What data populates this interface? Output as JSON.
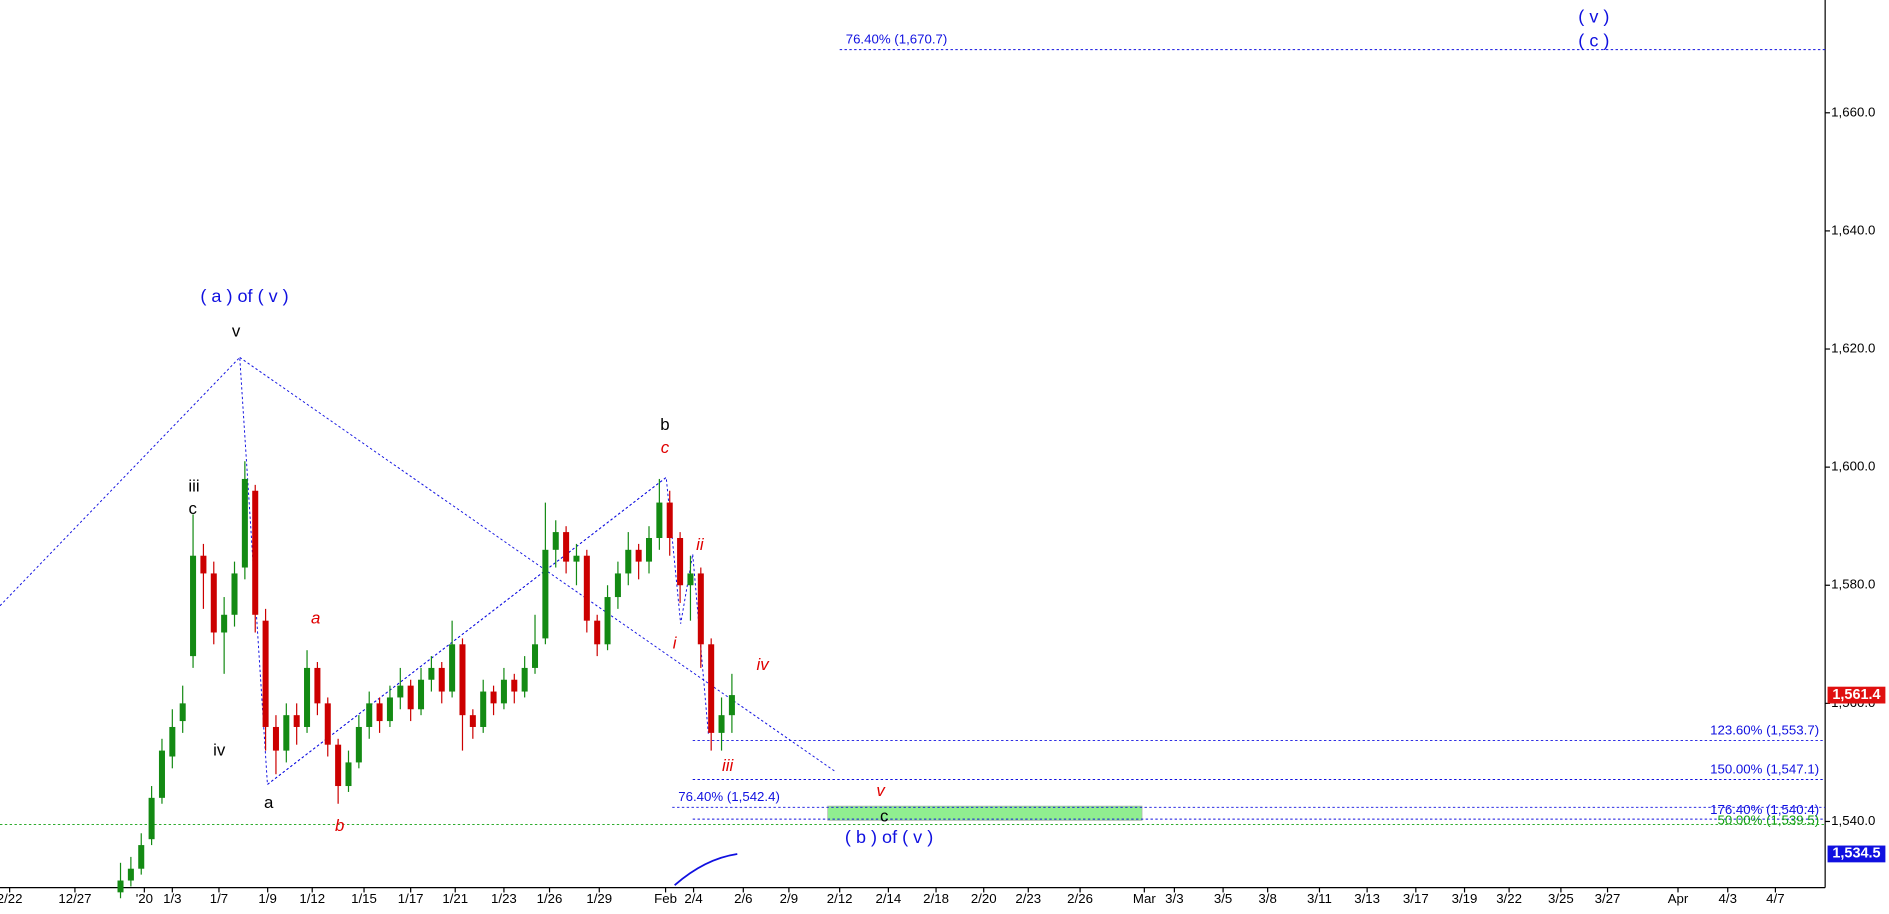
{
  "chart_data": {
    "type": "candlestick",
    "x": [
      0,
      1,
      2,
      3,
      4,
      5,
      6,
      7,
      8,
      9,
      10,
      11,
      12,
      13,
      14,
      15,
      16,
      17,
      18,
      19,
      20,
      21,
      22,
      23,
      24,
      25,
      26,
      27,
      28,
      29,
      30,
      31,
      32,
      33,
      34,
      35,
      36,
      37,
      38,
      39,
      40,
      41,
      42,
      43,
      44,
      45,
      46,
      47,
      48,
      49,
      50,
      51,
      52,
      53,
      54,
      55,
      56,
      57,
      58,
      59
    ],
    "open": [
      1528,
      1530,
      1532,
      1537,
      1544,
      1551,
      1557,
      1568,
      1585,
      1582,
      1572,
      1575,
      1583,
      1596,
      1574,
      1556,
      1552,
      1558,
      1556,
      1566,
      1560,
      1553,
      1546,
      1550,
      1556,
      1560,
      1557,
      1561,
      1563,
      1559,
      1564,
      1566,
      1562,
      1570,
      1558,
      1556,
      1562,
      1560,
      1564,
      1562,
      1566,
      1571,
      1586,
      1589,
      1584,
      1585,
      1574,
      1570,
      1578,
      1582,
      1586,
      1584,
      1588,
      1594,
      1588,
      1580,
      1582,
      1570,
      1555,
      1558
    ],
    "high": [
      1533,
      1534,
      1538,
      1546,
      1554,
      1559,
      1563,
      1592,
      1587,
      1584,
      1578,
      1584,
      1601,
      1597,
      1576,
      1558,
      1560,
      1560,
      1569,
      1567,
      1561,
      1554,
      1552,
      1558,
      1562,
      1561,
      1563,
      1566,
      1564,
      1566,
      1568,
      1567,
      1574,
      1571,
      1559,
      1564,
      1563,
      1566,
      1565,
      1568,
      1575,
      1594,
      1591,
      1590,
      1587,
      1586,
      1575,
      1580,
      1584,
      1589,
      1587,
      1590,
      1598,
      1596,
      1589,
      1585,
      1583,
      1571,
      1561,
      1565
    ],
    "low": [
      1527,
      1529,
      1531,
      1536,
      1543,
      1549,
      1555,
      1566,
      1576,
      1570,
      1565,
      1573,
      1581,
      1572,
      1552,
      1548,
      1550,
      1553,
      1555,
      1558,
      1551,
      1543,
      1545,
      1549,
      1554,
      1555,
      1556,
      1559,
      1557,
      1558,
      1562,
      1560,
      1561,
      1552,
      1554,
      1555,
      1558,
      1559,
      1560,
      1561,
      1565,
      1570,
      1583,
      1582,
      1580,
      1572,
      1568,
      1569,
      1576,
      1580,
      1581,
      1582,
      1586,
      1585,
      1577,
      1574,
      1566,
      1552,
      1552,
      1555
    ],
    "close": [
      1530,
      1532,
      1536,
      1544,
      1552,
      1556,
      1560,
      1585,
      1582,
      1572,
      1575,
      1582,
      1598,
      1575,
      1556,
      1552,
      1558,
      1556,
      1566,
      1560,
      1553,
      1546,
      1550,
      1556,
      1560,
      1557,
      1561,
      1563,
      1559,
      1564,
      1566,
      1562,
      1570,
      1558,
      1556,
      1562,
      1560,
      1564,
      1562,
      1566,
      1570,
      1586,
      1589,
      1584,
      1585,
      1574,
      1570,
      1578,
      1582,
      1586,
      1584,
      1588,
      1594,
      1588,
      1580,
      1582,
      1570,
      1555,
      1558,
      1561.4
    ],
    "up_color": "#138a13",
    "down_color": "#cc0000",
    "xlim": [
      -11.63,
      164.5
    ],
    "xticks": [
      {
        "value": -10.7,
        "label": "2/22"
      },
      {
        "value": -4.4,
        "label": "12/27"
      },
      {
        "value": 2.3,
        "label": "'20"
      },
      {
        "value": 5.0,
        "label": "1/3"
      },
      {
        "value": 9.5,
        "label": "1/7"
      },
      {
        "value": 14.2,
        "label": "1/9"
      },
      {
        "value": 18.5,
        "label": "1/12"
      },
      {
        "value": 23.5,
        "label": "1/15"
      },
      {
        "value": 28.0,
        "label": "1/17"
      },
      {
        "value": 32.3,
        "label": "1/21"
      },
      {
        "value": 37.0,
        "label": "1/23"
      },
      {
        "value": 41.4,
        "label": "1/26"
      },
      {
        "value": 46.2,
        "label": "1/29"
      },
      {
        "value": 52.6,
        "label": "Feb"
      },
      {
        "value": 55.3,
        "label": "2/4"
      },
      {
        "value": 60.1,
        "label": "2/6"
      },
      {
        "value": 64.5,
        "label": "2/9"
      },
      {
        "value": 69.4,
        "label": "2/12"
      },
      {
        "value": 74.1,
        "label": "2/14"
      },
      {
        "value": 78.7,
        "label": "2/18"
      },
      {
        "value": 83.3,
        "label": "2/20"
      },
      {
        "value": 87.6,
        "label": "2/23"
      },
      {
        "value": 92.6,
        "label": "2/26"
      },
      {
        "value": 98.8,
        "label": "Mar"
      },
      {
        "value": 101.7,
        "label": "3/3"
      },
      {
        "value": 106.4,
        "label": "3/5"
      },
      {
        "value": 110.7,
        "label": "3/8"
      },
      {
        "value": 115.7,
        "label": "3/11"
      },
      {
        "value": 120.3,
        "label": "3/13"
      },
      {
        "value": 125.0,
        "label": "3/17"
      },
      {
        "value": 129.7,
        "label": "3/19"
      },
      {
        "value": 134.0,
        "label": "3/22"
      },
      {
        "value": 139.0,
        "label": "3/25"
      },
      {
        "value": 143.5,
        "label": "3/27"
      },
      {
        "value": 150.3,
        "label": "Apr"
      },
      {
        "value": 155.1,
        "label": "4/3"
      },
      {
        "value": 159.7,
        "label": "4/7"
      }
    ],
    "ylim": [
      1528.8,
      1679.1
    ],
    "yticks": [
      {
        "value": 1540,
        "label": "1,540.0"
      },
      {
        "value": 1560,
        "label": "1,560.0"
      },
      {
        "value": 1580,
        "label": "1,580.0"
      },
      {
        "value": 1600,
        "label": "1,600.0"
      },
      {
        "value": 1620,
        "label": "1,620.0"
      },
      {
        "value": 1640,
        "label": "1,640.0"
      },
      {
        "value": 1660,
        "label": "1,660.0"
      }
    ],
    "levels": [
      {
        "value": 1670.7,
        "label": "76.40% (1,670.7)",
        "color": "#1010e0"
      },
      {
        "value": 1553.7,
        "label": "123.60% (1,553.7)",
        "color": "#1010e0"
      },
      {
        "value": 1547.1,
        "label": "150.00% (1,547.1)",
        "color": "#1010e0"
      },
      {
        "value": 1542.4,
        "label": "76.40% (1,542.4)",
        "color": "#1010e0"
      },
      {
        "value": 1540.4,
        "label": "176.40% (1,540.4)",
        "color": "#1010e0"
      },
      {
        "value": 1539.5,
        "label": "50.00% (1,539.5)",
        "color": "#10a010"
      }
    ],
    "price_tags": [
      {
        "value": 1561.4,
        "label": "1,561.4",
        "color": "#e01010"
      },
      {
        "value": 1534.5,
        "label": "1,534.5",
        "color": "#1010e0"
      }
    ],
    "annotations": [
      "( a ) of ( v )",
      "v",
      "iii",
      "c",
      "iv",
      "a",
      "a",
      "b",
      "b",
      "c",
      "ii",
      "i",
      "iv",
      "iii",
      "v",
      "c",
      "( b ) of ( v )",
      "( v )",
      "( c )"
    ]
  }
}
